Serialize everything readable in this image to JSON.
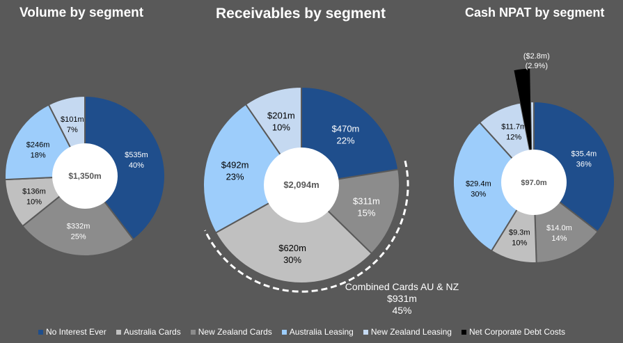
{
  "colors": {
    "background": "#595959",
    "No Interest Ever": "#1f4e8c",
    "Australia Cards": "#c0c0c0",
    "New Zealand Cards": "#8c8c8c",
    "Australia Leasing": "#9dcdfb",
    "New Zealand Leasing": "#c5d9f1",
    "Net Corporate Debt Costs": "#000000"
  },
  "legend": [
    {
      "label": "No Interest Ever",
      "color": "#1f4e8c"
    },
    {
      "label": "Australia Cards",
      "color": "#c0c0c0"
    },
    {
      "label": "New Zealand Cards",
      "color": "#8c8c8c"
    },
    {
      "label": "Australia Leasing",
      "color": "#9dcdfb"
    },
    {
      "label": "New Zealand Leasing",
      "color": "#c5d9f1"
    },
    {
      "label": "Net Corporate Debt Costs",
      "color": "#000000"
    }
  ],
  "annotations": {
    "combined": {
      "line1": "Combined Cards AU & NZ",
      "line2": "$931m",
      "line3": "45%"
    }
  },
  "chart_data": [
    {
      "type": "pie",
      "title": "Volume by segment",
      "center_label": "$1,350m",
      "slices": [
        {
          "name": "No Interest Ever",
          "value": 535,
          "pct": 40,
          "label": "$535m",
          "pct_label": "40%"
        },
        {
          "name": "New Zealand Cards",
          "value": 332,
          "pct": 25,
          "label": "$332m",
          "pct_label": "25%"
        },
        {
          "name": "Australia Cards",
          "value": 136,
          "pct": 10,
          "label": "$136m",
          "pct_label": "10%"
        },
        {
          "name": "Australia Leasing",
          "value": 246,
          "pct": 18,
          "label": "$246m",
          "pct_label": "18%"
        },
        {
          "name": "New Zealand Leasing",
          "value": 101,
          "pct": 7,
          "label": "$101m",
          "pct_label": "7%"
        }
      ]
    },
    {
      "type": "pie",
      "title": "Receivables by segment",
      "center_label": "$2,094m",
      "slices": [
        {
          "name": "No Interest Ever",
          "value": 470,
          "pct": 22,
          "label": "$470m",
          "pct_label": "22%"
        },
        {
          "name": "New Zealand Cards",
          "value": 311,
          "pct": 15,
          "label": "$311m",
          "pct_label": "15%"
        },
        {
          "name": "Australia Cards",
          "value": 620,
          "pct": 30,
          "label": "$620m",
          "pct_label": "30%"
        },
        {
          "name": "Australia Leasing",
          "value": 492,
          "pct": 23,
          "label": "$492m",
          "pct_label": "23%"
        },
        {
          "name": "New Zealand Leasing",
          "value": 201,
          "pct": 10,
          "label": "$201m",
          "pct_label": "10%"
        }
      ]
    },
    {
      "type": "pie",
      "title": "Cash NPAT by segment",
      "center_label": "$97.0m",
      "slices": [
        {
          "name": "No Interest Ever",
          "value": 35.4,
          "pct": 36,
          "label": "$35.4m",
          "pct_label": "36%"
        },
        {
          "name": "New Zealand Cards",
          "value": 14.0,
          "pct": 14,
          "label": "$14.0m",
          "pct_label": "14%"
        },
        {
          "name": "Australia Cards",
          "value": 9.3,
          "pct": 10,
          "label": "$9.3m",
          "pct_label": "10%"
        },
        {
          "name": "Australia Leasing",
          "value": 29.4,
          "pct": 30,
          "label": "$29.4m",
          "pct_label": "30%"
        },
        {
          "name": "New Zealand Leasing",
          "value": 11.7,
          "pct": 12,
          "label": "$11.7m",
          "pct_label": "12%"
        },
        {
          "name": "Net Corporate Debt Costs",
          "value": -2.8,
          "pct": -2.9,
          "label": "($2.8m)",
          "pct_label": "(2.9%)"
        }
      ]
    }
  ]
}
